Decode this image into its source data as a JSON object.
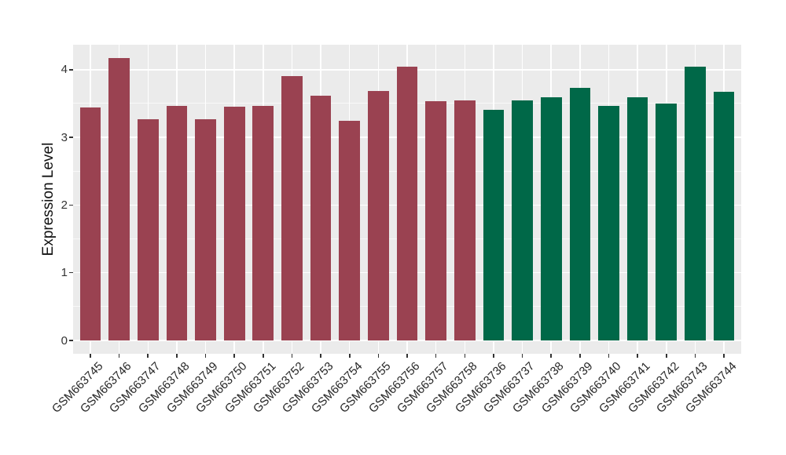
{
  "chart_data": {
    "type": "bar",
    "title": "",
    "xlabel": "",
    "ylabel": "Expression Level",
    "ylim": [
      0,
      4.37
    ],
    "yticks": [
      0,
      1,
      2,
      3,
      4
    ],
    "ytick_labels": [
      "0",
      "1",
      "2",
      "3",
      "4"
    ],
    "minor_gridlines": [
      0.5,
      1.5,
      2.5,
      3.5
    ],
    "grid": "on",
    "legend_position": "none",
    "categories": [
      "GSM663745",
      "GSM663746",
      "GSM663747",
      "GSM663748",
      "GSM663749",
      "GSM663750",
      "GSM663751",
      "GSM663752",
      "GSM663753",
      "GSM663754",
      "GSM663755",
      "GSM663756",
      "GSM663757",
      "GSM663758",
      "GSM663736",
      "GSM663737",
      "GSM663738",
      "GSM663739",
      "GSM663740",
      "GSM663741",
      "GSM663742",
      "GSM663743",
      "GSM663744"
    ],
    "values": [
      3.44,
      4.17,
      3.27,
      3.46,
      3.27,
      3.45,
      3.47,
      3.91,
      3.62,
      3.24,
      3.68,
      4.05,
      3.54,
      3.55,
      3.41,
      3.55,
      3.59,
      3.73,
      3.46,
      3.59,
      3.5,
      4.05,
      3.67
    ],
    "groups": [
      "maroon",
      "maroon",
      "maroon",
      "maroon",
      "maroon",
      "maroon",
      "maroon",
      "maroon",
      "maroon",
      "maroon",
      "maroon",
      "maroon",
      "maroon",
      "maroon",
      "green",
      "green",
      "green",
      "green",
      "green",
      "green",
      "green",
      "green",
      "green"
    ],
    "group_colors": {
      "maroon": "#9A4251",
      "green": "#006848"
    },
    "panel_background": "#EBEBEB",
    "grid_color": "#FFFFFF",
    "figure_background": "#FFFFFF",
    "axis_text_color": "#333333",
    "axis_title_color": "#111111"
  }
}
